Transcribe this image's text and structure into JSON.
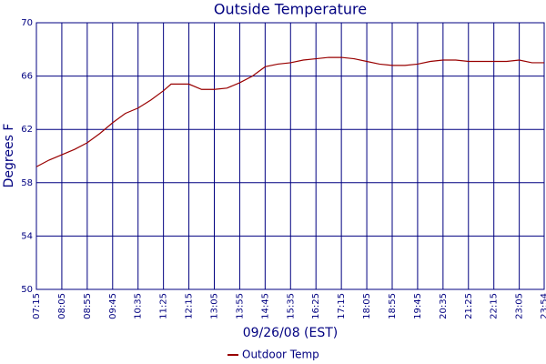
{
  "chart_data": {
    "type": "line",
    "title": "Outside Temperature",
    "x_label": "09/26/08 (EST)",
    "y_label": "Degrees F",
    "x": [
      435,
      460,
      485,
      510,
      535,
      560,
      585,
      610,
      635,
      660,
      685,
      700,
      735,
      760,
      785,
      810,
      835,
      860,
      885,
      910,
      935,
      960,
      985,
      1010,
      1035,
      1060,
      1085,
      1110,
      1135,
      1160,
      1185,
      1210,
      1235,
      1260,
      1285,
      1310,
      1335,
      1360,
      1385,
      1410,
      1434
    ],
    "series": [
      {
        "name": "Outdoor Temp",
        "color": "#990000",
        "values": [
          59.2,
          59.7,
          60.1,
          60.5,
          61.0,
          61.7,
          62.5,
          63.2,
          63.6,
          64.2,
          64.9,
          65.4,
          65.4,
          65.0,
          65.0,
          65.1,
          65.5,
          66.0,
          66.7,
          66.9,
          67.0,
          67.2,
          67.3,
          67.4,
          67.4,
          67.3,
          67.1,
          66.9,
          66.8,
          66.8,
          66.9,
          67.1,
          67.2,
          67.2,
          67.1,
          67.1,
          67.1,
          67.1,
          67.2,
          67.0,
          67.0
        ]
      }
    ],
    "xlim": [
      435,
      1434
    ],
    "xticks": [
      {
        "value": 435,
        "label": "07:15"
      },
      {
        "value": 485,
        "label": "08:05"
      },
      {
        "value": 535,
        "label": "08:55"
      },
      {
        "value": 585,
        "label": "09:45"
      },
      {
        "value": 635,
        "label": "10:35"
      },
      {
        "value": 685,
        "label": "11:25"
      },
      {
        "value": 735,
        "label": "12:15"
      },
      {
        "value": 785,
        "label": "13:05"
      },
      {
        "value": 835,
        "label": "13:55"
      },
      {
        "value": 885,
        "label": "14:45"
      },
      {
        "value": 935,
        "label": "15:35"
      },
      {
        "value": 985,
        "label": "16:25"
      },
      {
        "value": 1035,
        "label": "17:15"
      },
      {
        "value": 1085,
        "label": "18:05"
      },
      {
        "value": 1135,
        "label": "18:55"
      },
      {
        "value": 1185,
        "label": "19:45"
      },
      {
        "value": 1235,
        "label": "20:35"
      },
      {
        "value": 1285,
        "label": "21:25"
      },
      {
        "value": 1335,
        "label": "22:15"
      },
      {
        "value": 1385,
        "label": "23:05"
      },
      {
        "value": 1434,
        "label": "23:54"
      }
    ],
    "ylim": [
      50,
      70
    ],
    "yticks": [
      50,
      54,
      58,
      62,
      66,
      70
    ],
    "grid": true
  }
}
